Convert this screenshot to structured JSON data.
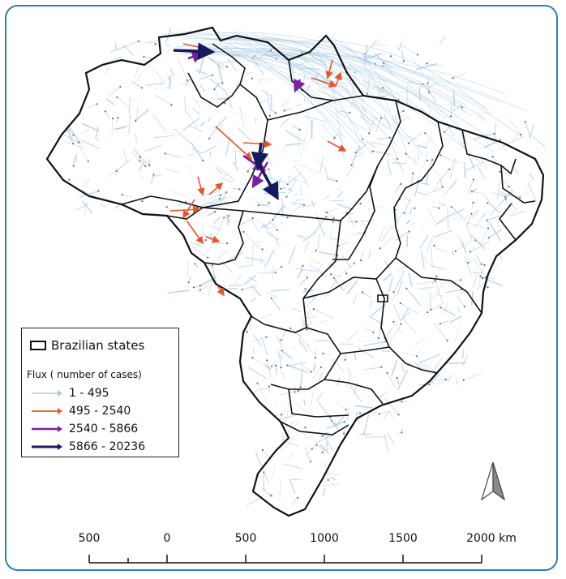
{
  "legend": {
    "states_label": "Brazilian states",
    "flux_title": "Flux ( number of cases)",
    "classes": [
      {
        "label": "1 - 495",
        "color": "#a9cbe6"
      },
      {
        "label": "495 - 2540",
        "color": "#e8542a"
      },
      {
        "label": "2540 - 5866",
        "color": "#7b1fa2"
      },
      {
        "label": "5866 - 20236",
        "color": "#141a5e"
      }
    ]
  },
  "scale_bar": {
    "labels": [
      "500",
      "0",
      "500",
      "1000",
      "1500",
      "2000 km"
    ]
  },
  "north_arrow": "north-arrow-icon",
  "colors": {
    "frame": "#2e7fb8",
    "state_border": "#111111",
    "flux_base": "#a9cbe6"
  }
}
